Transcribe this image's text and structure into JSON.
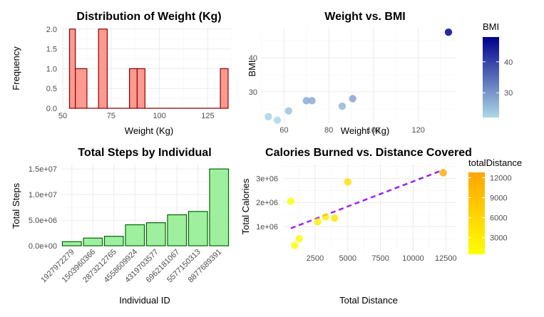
{
  "chart_data": [
    {
      "id": "hist",
      "type": "bar",
      "title": "Distribution of Weight (Kg)",
      "xlabel": "Weight (Kg)",
      "ylabel": "Frequency",
      "xlim": [
        50,
        137
      ],
      "ylim": [
        0,
        2.05
      ],
      "xticks": [
        50,
        75,
        100,
        125
      ],
      "yticks": [
        0.0,
        0.5,
        1.0,
        1.5,
        2.0
      ],
      "ytick_labels": [
        "0.0",
        "0.5",
        "1.0",
        "1.5",
        "2.0"
      ],
      "bins": [
        {
          "x0": 53.5,
          "x1": 56.5,
          "count": 2
        },
        {
          "x0": 56.5,
          "x1": 62.5,
          "count": 1
        },
        {
          "x0": 62.5,
          "x1": 68.5,
          "count": 0
        },
        {
          "x0": 68.5,
          "x1": 73,
          "count": 2
        },
        {
          "x0": 73,
          "x1": 84.5,
          "count": 0
        },
        {
          "x0": 84.5,
          "x1": 88.5,
          "count": 1
        },
        {
          "x0": 88.5,
          "x1": 92.5,
          "count": 1
        },
        {
          "x0": 92.5,
          "x1": 131.5,
          "count": 0
        },
        {
          "x0": 131.5,
          "x1": 135.5,
          "count": 1
        }
      ],
      "fill": "#ff9a90",
      "stroke": "#8b0000"
    },
    {
      "id": "scatter_bmi",
      "type": "scatter",
      "title": "Weight vs. BMI",
      "xlabel": "Weight (Kg)",
      "ylabel": "BMI",
      "xlim": [
        50,
        137
      ],
      "ylim": [
        21,
        49
      ],
      "xticks": [
        60,
        80,
        100,
        120
      ],
      "yticks": [
        30,
        40
      ],
      "points": [
        {
          "x": 53,
          "y": 22.7
        },
        {
          "x": 57,
          "y": 21.7
        },
        {
          "x": 62,
          "y": 24.4
        },
        {
          "x": 70,
          "y": 27.4
        },
        {
          "x": 72.5,
          "y": 27.4
        },
        {
          "x": 86,
          "y": 25.8
        },
        {
          "x": 90.7,
          "y": 28.0
        },
        {
          "x": 133.5,
          "y": 47.5
        }
      ],
      "legend": {
        "title": "BMI",
        "range": [
          22,
          48
        ],
        "ticks": [
          30,
          40
        ],
        "low_color": "#add8e6",
        "high_color": "#00008b",
        "position": "right"
      }
    },
    {
      "id": "steps",
      "type": "bar",
      "title": "Total Steps by Individual",
      "xlabel": "Individual ID",
      "ylabel": "Total Steps",
      "ylim": [
        0,
        16000000
      ],
      "yticks": [
        0,
        5000000,
        10000000,
        15000000
      ],
      "ytick_labels": [
        "0.0e+00",
        "5.0e+06",
        "1.0e+07",
        "1.5e+07"
      ],
      "categories": [
        "1927972279",
        "1503960366",
        "2873212765",
        "4558609924",
        "4319703577",
        "6962181067",
        "5577150313",
        "8877689391"
      ],
      "values": [
        800000,
        1500000,
        1850000,
        4100000,
        4500000,
        6050000,
        6700000,
        15000000
      ],
      "fill": "#9ef09e",
      "stroke": "#006400"
    },
    {
      "id": "calories",
      "type": "scatter",
      "title": "Calories Burned vs. Distance Covered",
      "xlabel": "Total Distance",
      "ylabel": "Total Calories",
      "xlim": [
        0,
        13300
      ],
      "ylim": [
        0,
        3600000
      ],
      "xticks": [
        2500,
        5000,
        7500,
        10000,
        12500
      ],
      "yticks": [
        1000000,
        2000000,
        3000000
      ],
      "ytick_labels": [
        "1e+06",
        "2e+06",
        "3e+06"
      ],
      "points": [
        {
          "x": 650,
          "y": 2050000
        },
        {
          "x": 950,
          "y": 220000
        },
        {
          "x": 1300,
          "y": 500000
        },
        {
          "x": 2700,
          "y": 1200000
        },
        {
          "x": 3300,
          "y": 1400000
        },
        {
          "x": 4000,
          "y": 1350000
        },
        {
          "x": 5000,
          "y": 2850000
        },
        {
          "x": 12300,
          "y": 3230000
        }
      ],
      "trendline": {
        "x0": 650,
        "y0": 930000,
        "x1": 12300,
        "y1": 3350000,
        "color": "#a020f0"
      },
      "legend": {
        "title": "totalDistance",
        "range": [
          500,
          12800
        ],
        "ticks": [
          3000,
          6000,
          9000,
          12000
        ],
        "low_color": "#ffff00",
        "high_color": "#ffa500",
        "position": "right"
      }
    }
  ]
}
